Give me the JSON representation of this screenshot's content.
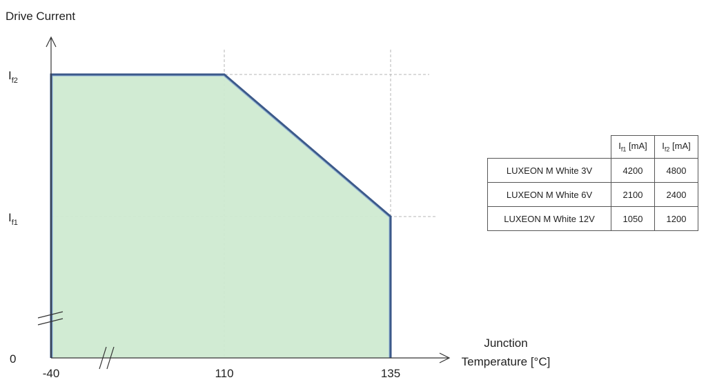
{
  "chart_data": {
    "type": "area",
    "ylabel": "Drive Current",
    "xlabel_lines": [
      "Junction",
      "Temperature [°C]"
    ],
    "x_ticks": [
      "-40",
      "110",
      "135"
    ],
    "y_ticks": [
      {
        "main": "I",
        "sub": "f2"
      },
      {
        "main": "I",
        "sub": "f1"
      },
      {
        "main": "0",
        "sub": ""
      }
    ],
    "x_values": [
      -40,
      110,
      135
    ],
    "curve": [
      {
        "x": -40,
        "y": "If2"
      },
      {
        "x": 110,
        "y": "If2"
      },
      {
        "x": 135,
        "y": "If1"
      },
      {
        "x": 135,
        "y": "0"
      }
    ],
    "fill_color": "#cfead1",
    "line_color": "#3c5a8a",
    "grid": "dashed guides at 110, 135, If1, If2",
    "axis_breaks": [
      "x",
      "y"
    ]
  },
  "table": {
    "headers": [
      {
        "main": "I",
        "sub": "f1",
        "rest": " [mA]"
      },
      {
        "main": "I",
        "sub": "f2",
        "rest": " [mA]"
      }
    ],
    "rows": [
      {
        "name": "LUXEON M White 3V",
        "if1": "4200",
        "if2": "4800"
      },
      {
        "name": "LUXEON M White 6V",
        "if1": "2100",
        "if2": "2400"
      },
      {
        "name": "LUXEON M White 12V",
        "if1": "1050",
        "if2": "1200"
      }
    ]
  }
}
